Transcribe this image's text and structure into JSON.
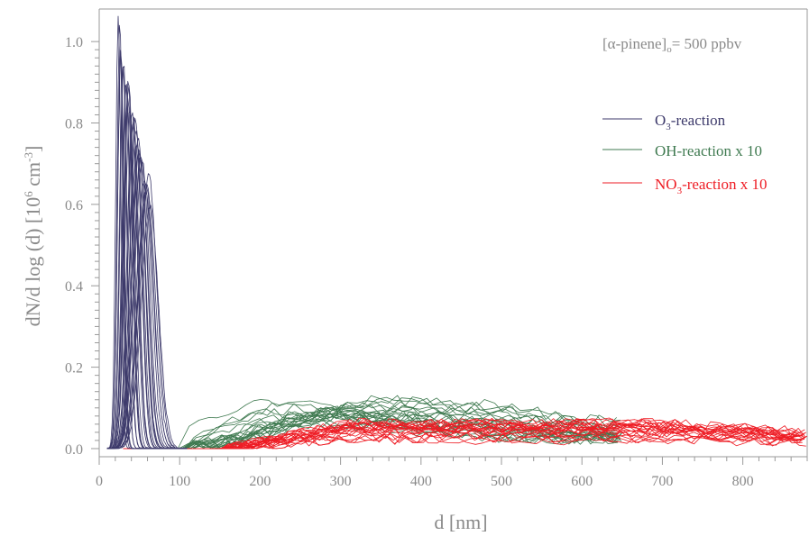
{
  "chart_data": {
    "type": "line",
    "title": "",
    "annotation": {
      "prefix": "[α-pinene]",
      "subscript": "o",
      "suffix": "= 500 ppbv"
    },
    "xlabel": "d [nm]",
    "ylabel": {
      "main": "dN/d log (d) [10",
      "sup1": "6",
      "mid": " cm",
      "sup2": "-3",
      "end": "]"
    },
    "xlim": [
      0,
      880
    ],
    "ylim": [
      -0.02,
      1.08
    ],
    "xticks": [
      0,
      100,
      200,
      300,
      400,
      500,
      600,
      700,
      800
    ],
    "yticks": [
      0.0,
      0.2,
      0.4,
      0.6,
      0.8,
      1.0
    ],
    "ytick_labels": [
      "0.0",
      "0.2",
      "0.4",
      "0.6",
      "0.8",
      "1.0"
    ],
    "legend_position": "upper-right",
    "series": [
      {
        "name": "O3-reaction",
        "label_parts": {
          "pre": "O",
          "sub": "3",
          "post": "-reaction"
        },
        "color": "#3d3a6b",
        "curves": 30,
        "peak_d_range": [
          24,
          62
        ],
        "peak_value_range": [
          0.62,
          1.05
        ],
        "width_range": [
          9,
          30
        ],
        "x_extent": [
          10,
          110
        ]
      },
      {
        "name": "OH-reaction x 10",
        "label_parts": {
          "pre": "OH-reaction x 10",
          "sub": "",
          "post": ""
        },
        "color": "#3f7a50",
        "curves": 22,
        "onset_d": 110,
        "peak_d_range": [
          180,
          400
        ],
        "peak_value_range": [
          0.06,
          0.12
        ],
        "x_extent": [
          30,
          650
        ]
      },
      {
        "name": "NO3-reaction x 10",
        "label_parts": {
          "pre": "NO",
          "sub": "3",
          "post": "-reaction x 10"
        },
        "color": "#ee1c24",
        "curves": 22,
        "onset_d": 160,
        "plateau_value_range": [
          0.02,
          0.07
        ],
        "x_extent": [
          30,
          880
        ]
      }
    ]
  }
}
